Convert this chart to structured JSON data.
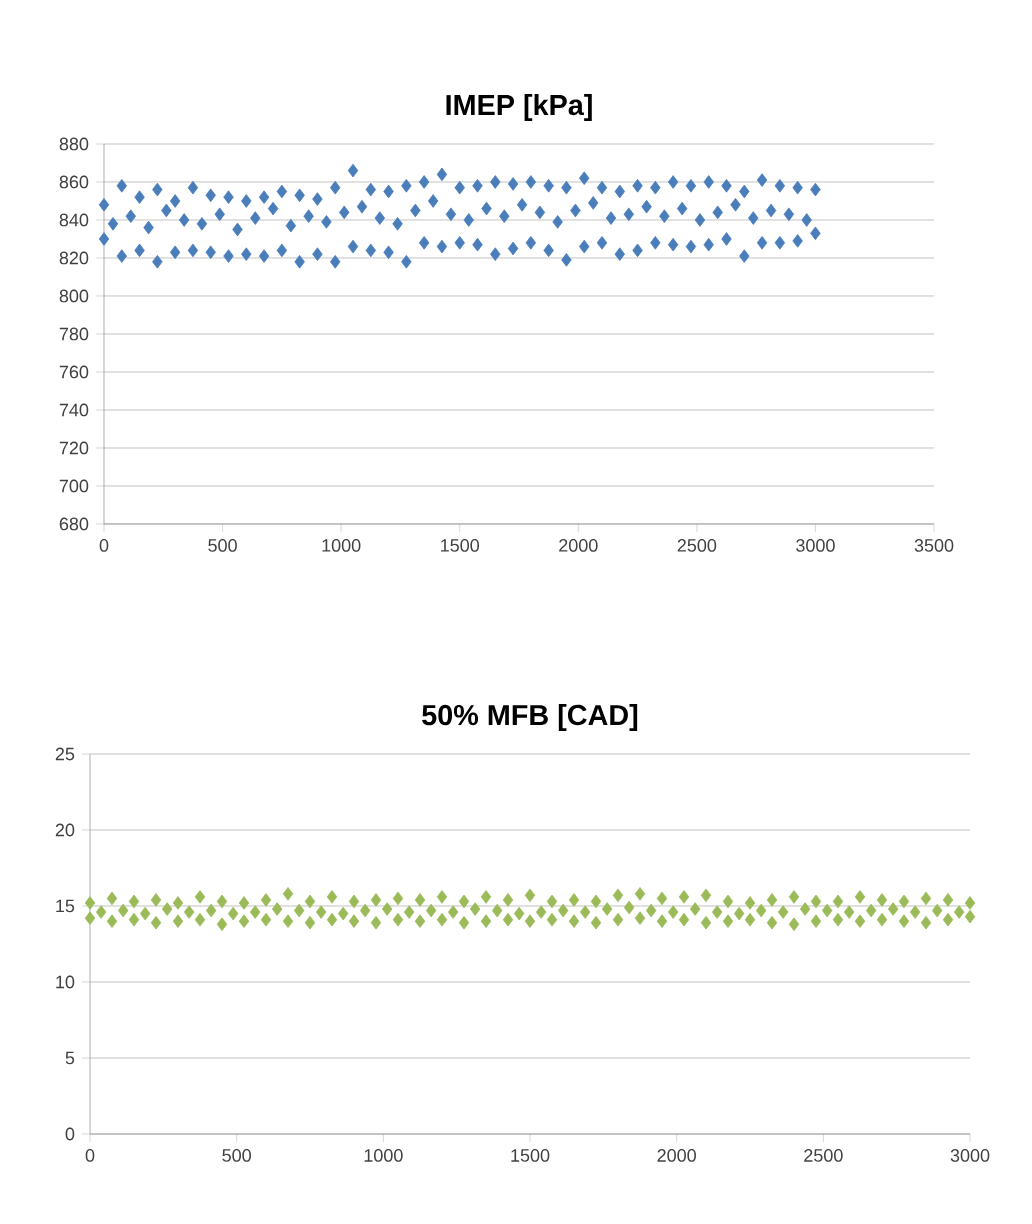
{
  "chart_data": [
    {
      "type": "scatter",
      "title": "IMEP [kPa]",
      "xlim": [
        0,
        3500
      ],
      "xticks": [
        0,
        500,
        1000,
        1500,
        2000,
        2500,
        3000,
        3500
      ],
      "ylim": [
        680,
        880
      ],
      "yticks": [
        680,
        700,
        720,
        740,
        760,
        780,
        800,
        820,
        840,
        860,
        880
      ],
      "grid": "y",
      "marker": "diamond",
      "series": [
        {
          "color": "#4a7ebb",
          "x": [
            0,
            75,
            150,
            225,
            300,
            375,
            450,
            525,
            600,
            675,
            750,
            825,
            900,
            975,
            1050,
            1125,
            1200,
            1275,
            1350,
            1425,
            1500,
            1575,
            1650,
            1725,
            1800,
            1875,
            1950,
            2025,
            2100,
            2175,
            2250,
            2325,
            2400,
            2475,
            2550,
            2625,
            2700,
            2775,
            2850,
            2925,
            3000,
            0,
            75,
            150,
            225,
            300,
            375,
            450,
            525,
            600,
            675,
            750,
            825,
            900,
            975,
            1050,
            1125,
            1200,
            1275,
            1350,
            1425,
            1500,
            1575,
            1650,
            1725,
            1800,
            1875,
            1950,
            2025,
            2100,
            2175,
            2250,
            2325,
            2400,
            2475,
            2550,
            2625,
            2700,
            2775,
            2850,
            2925,
            3000,
            38,
            113,
            188,
            263,
            338,
            413,
            488,
            563,
            638,
            713,
            788,
            863,
            938,
            1013,
            1088,
            1163,
            1238,
            1313,
            1388,
            1463,
            1538,
            1613,
            1688,
            1763,
            1838,
            1913,
            1988,
            2063,
            2138,
            2213,
            2288,
            2363,
            2438,
            2513,
            2588,
            2663,
            2738,
            2813,
            2888,
            2963
          ],
          "values": [
            848,
            858,
            852,
            856,
            850,
            857,
            853,
            852,
            850,
            852,
            855,
            853,
            851,
            857,
            866,
            856,
            855,
            858,
            860,
            864,
            857,
            858,
            860,
            859,
            860,
            858,
            857,
            862,
            857,
            855,
            858,
            857,
            860,
            858,
            860,
            858,
            855,
            861,
            858,
            857,
            856,
            830,
            821,
            824,
            818,
            823,
            824,
            823,
            821,
            822,
            821,
            824,
            818,
            822,
            818,
            826,
            824,
            823,
            818,
            828,
            826,
            828,
            827,
            822,
            825,
            828,
            824,
            819,
            826,
            828,
            822,
            824,
            828,
            827,
            826,
            827,
            830,
            821,
            828,
            828,
            829,
            833,
            838,
            842,
            836,
            845,
            840,
            838,
            843,
            835,
            841,
            846,
            837,
            842,
            839,
            844,
            847,
            841,
            838,
            845,
            850,
            843,
            840,
            846,
            842,
            848,
            844,
            839,
            845,
            849,
            841,
            843,
            847,
            842,
            846,
            840,
            844,
            848,
            841,
            845,
            843,
            840
          ]
        }
      ]
    },
    {
      "type": "scatter",
      "title": "50% MFB [CAD]",
      "xlim": [
        0,
        3000
      ],
      "xticks": [
        0,
        500,
        1000,
        1500,
        2000,
        2500,
        3000
      ],
      "ylim": [
        0,
        25
      ],
      "yticks": [
        0,
        5,
        10,
        15,
        20,
        25
      ],
      "grid": "y",
      "marker": "diamond",
      "series": [
        {
          "color": "#9bbb59",
          "x": [
            0,
            75,
            150,
            225,
            300,
            375,
            450,
            525,
            600,
            675,
            750,
            825,
            900,
            975,
            1050,
            1125,
            1200,
            1275,
            1350,
            1425,
            1500,
            1575,
            1650,
            1725,
            1800,
            1875,
            1950,
            2025,
            2100,
            2175,
            2250,
            2325,
            2400,
            2475,
            2550,
            2625,
            2700,
            2775,
            2850,
            2925,
            3000,
            0,
            75,
            150,
            225,
            300,
            375,
            450,
            525,
            600,
            675,
            750,
            825,
            900,
            975,
            1050,
            1125,
            1200,
            1275,
            1350,
            1425,
            1500,
            1575,
            1650,
            1725,
            1800,
            1875,
            1950,
            2025,
            2100,
            2175,
            2250,
            2325,
            2400,
            2475,
            2550,
            2625,
            2700,
            2775,
            2850,
            2925,
            3000,
            38,
            113,
            188,
            263,
            338,
            413,
            488,
            563,
            638,
            713,
            788,
            863,
            938,
            1013,
            1088,
            1163,
            1238,
            1313,
            1388,
            1463,
            1538,
            1613,
            1688,
            1763,
            1838,
            1913,
            1988,
            2063,
            2138,
            2213,
            2288,
            2363,
            2438,
            2513,
            2588,
            2663,
            2738,
            2813,
            2888,
            2963
          ],
          "values": [
            15.2,
            15.5,
            15.3,
            15.4,
            15.2,
            15.6,
            15.3,
            15.2,
            15.4,
            15.8,
            15.3,
            15.6,
            15.3,
            15.4,
            15.5,
            15.4,
            15.6,
            15.3,
            15.6,
            15.4,
            15.7,
            15.3,
            15.4,
            15.3,
            15.7,
            15.8,
            15.5,
            15.6,
            15.7,
            15.3,
            15.2,
            15.4,
            15.6,
            15.3,
            15.3,
            15.6,
            15.4,
            15.3,
            15.5,
            15.4,
            15.2,
            14.2,
            14.0,
            14.1,
            13.9,
            14.0,
            14.1,
            13.8,
            14.0,
            14.1,
            14.0,
            13.9,
            14.1,
            14.0,
            13.9,
            14.1,
            14.0,
            14.1,
            13.9,
            14.0,
            14.1,
            14.0,
            14.1,
            14.0,
            13.9,
            14.1,
            14.2,
            14.0,
            14.1,
            13.9,
            14.0,
            14.1,
            13.9,
            13.8,
            14.0,
            14.1,
            14.0,
            14.1,
            14.0,
            13.9,
            14.1,
            14.3,
            14.6,
            14.7,
            14.5,
            14.8,
            14.6,
            14.7,
            14.5,
            14.6,
            14.8,
            14.7,
            14.6,
            14.5,
            14.7,
            14.8,
            14.6,
            14.7,
            14.6,
            14.8,
            14.7,
            14.5,
            14.6,
            14.7,
            14.6,
            14.8,
            14.9,
            14.7,
            14.6,
            14.8,
            14.6,
            14.5,
            14.7,
            14.6,
            14.8,
            14.7,
            14.6,
            14.7,
            14.8,
            14.6,
            14.7,
            14.6
          ]
        }
      ]
    }
  ]
}
